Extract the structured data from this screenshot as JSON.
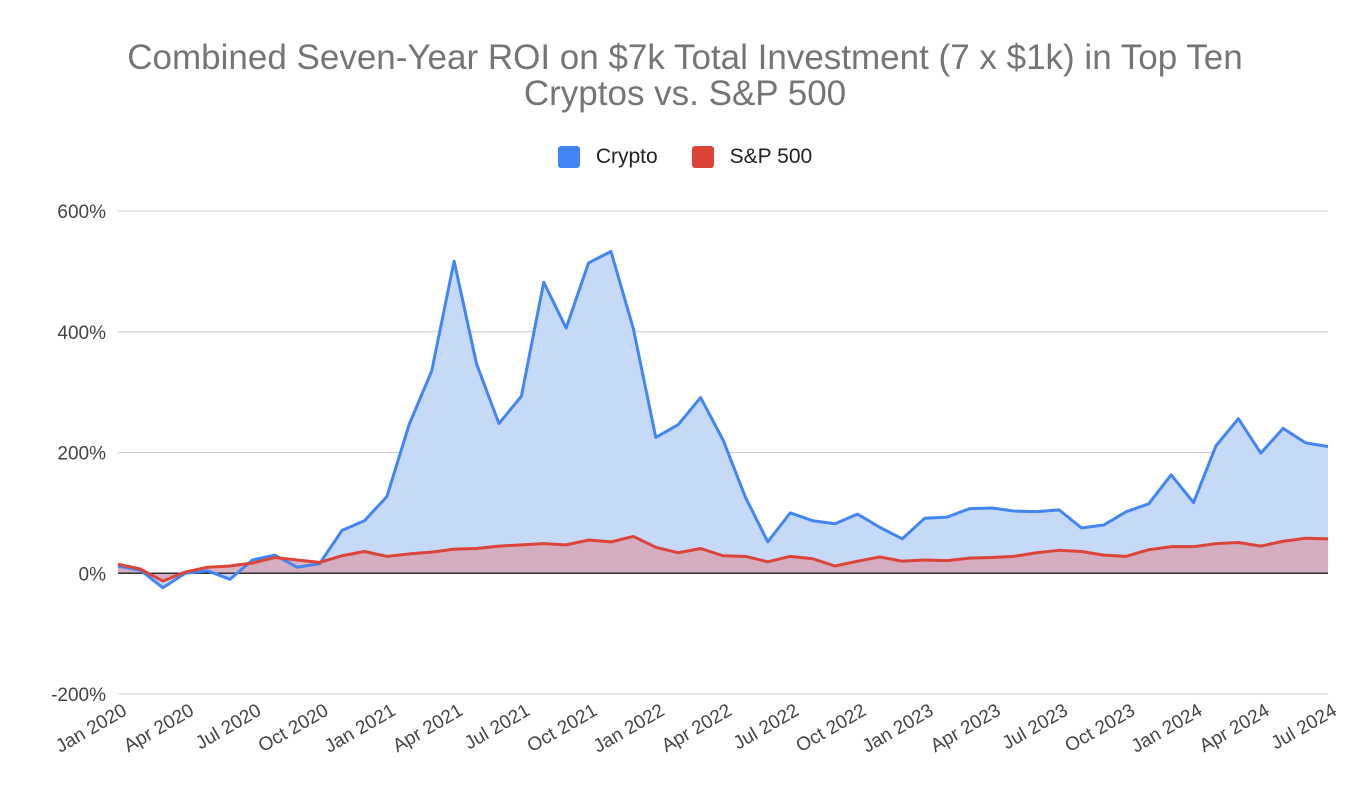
{
  "title_line1": "Combined Seven-Year ROI on $7k Total Investment (7 x $1k) in Top Ten",
  "title_line2": "Cryptos vs. S&P 500",
  "chart_data": {
    "type": "area",
    "title": "Combined Seven-Year ROI on $7k Total Investment (7 x $1k) in Top Ten Cryptos vs. S&P 500",
    "xlabel": "",
    "ylabel": "",
    "ylim": [
      -200,
      600
    ],
    "y_ticks": [
      "600%",
      "400%",
      "200%",
      "0%",
      "-200%"
    ],
    "y_tick_values": [
      600,
      400,
      200,
      0,
      -200
    ],
    "x_tick_labels": [
      "Jan 2020",
      "Apr 2020",
      "Jul 2020",
      "Oct 2020",
      "Jan 2021",
      "Apr 2021",
      "Jul 2021",
      "Oct 2021",
      "Jan 2022",
      "Apr 2022",
      "Jul 2022",
      "Oct 2022",
      "Jan 2023",
      "Apr 2023",
      "Jul 2023",
      "Oct 2023",
      "Jan 2024",
      "Apr 2024",
      "Jul 2024"
    ],
    "x_start": "Jan 2020",
    "x_end": "Jul 2024",
    "grid": true,
    "legend_position": "top",
    "series": [
      {
        "name": "Crypto",
        "color": "#4285f4",
        "fill": "#c6d9f7",
        "values": [
          12,
          5,
          -24,
          0,
          4,
          -10,
          22,
          30,
          10,
          16,
          71,
          87,
          127,
          247,
          335,
          517,
          347,
          248,
          293,
          482,
          406,
          514,
          533,
          405,
          225,
          246,
          291,
          221,
          126,
          52,
          100,
          87,
          82,
          98,
          76,
          57,
          91,
          93,
          107,
          108,
          103,
          102,
          105,
          75,
          80,
          102,
          115,
          163,
          117,
          211,
          256,
          199,
          240,
          216,
          210
        ]
      },
      {
        "name": "S&P 500",
        "color": "#db4437",
        "fill": "#d6a6b6",
        "values": [
          15,
          7,
          -13,
          2,
          10,
          12,
          17,
          26,
          22,
          18,
          29,
          36,
          28,
          32,
          35,
          40,
          41,
          45,
          47,
          49,
          47,
          55,
          52,
          61,
          43,
          34,
          41,
          29,
          28,
          19,
          28,
          24,
          12,
          20,
          27,
          20,
          22,
          21,
          25,
          26,
          28,
          34,
          38,
          36,
          30,
          28,
          39,
          44,
          44,
          49,
          51,
          45,
          53,
          58,
          57
        ]
      }
    ]
  }
}
